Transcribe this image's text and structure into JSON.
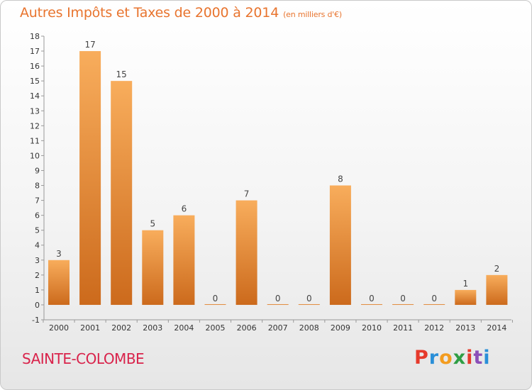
{
  "title": "Autres Impôts et Taxes de 2000 à 2014",
  "unit": "(en milliers d'€)",
  "commune": "SAINTE-COLOMBE",
  "logo": {
    "letters": [
      "P",
      "r",
      "o",
      "x",
      "i",
      "t",
      "i"
    ],
    "colors": [
      "#e63a2b",
      "#2a8fd8",
      "#f39c1f",
      "#2f9e44",
      "#e63a2b",
      "#8c4fb8",
      "#2a8fd8"
    ]
  },
  "colors": {
    "bar_light": "#f7a957",
    "bar_dark": "#cc6a1c",
    "title": "#e8742e",
    "commune": "#d9234b"
  },
  "chart_data": {
    "type": "bar",
    "title": "Autres Impôts et Taxes de 2000 à 2014",
    "xlabel": "",
    "ylabel": "",
    "categories": [
      "2000",
      "2001",
      "2002",
      "2003",
      "2004",
      "2005",
      "2006",
      "2007",
      "2008",
      "2009",
      "2010",
      "2011",
      "2012",
      "2013",
      "2014"
    ],
    "values": [
      3,
      17,
      15,
      5,
      6,
      0,
      7,
      0,
      0,
      8,
      0,
      0,
      0,
      1,
      2
    ],
    "ylim": [
      -1,
      18
    ],
    "yticks": [
      -1,
      0,
      1,
      2,
      3,
      4,
      5,
      6,
      7,
      8,
      9,
      10,
      11,
      12,
      13,
      14,
      15,
      16,
      17,
      18
    ],
    "grid": false,
    "legend": "none"
  }
}
